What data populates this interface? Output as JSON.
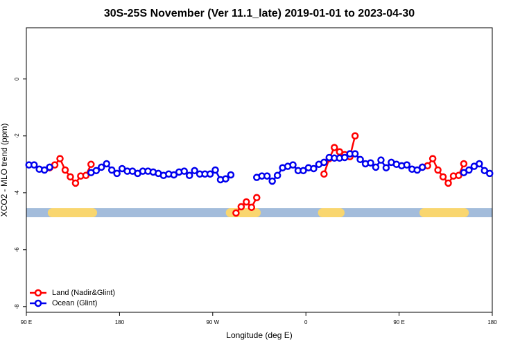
{
  "chart_data": {
    "type": "line",
    "title": "30S-25S November (Ver 11.1_late)   2019-01-01 to 2023-04-30",
    "x_label": "Longitude (deg E)",
    "y_label": "XCO2 - MLO trend (ppm)",
    "xlim": [
      90,
      540
    ],
    "ylim": [
      -8.2,
      1.8
    ],
    "xticks": [
      {
        "value": 90,
        "label": "90 E"
      },
      180,
      {
        "value": 270,
        "label": "90 W"
      },
      {
        "value": 360,
        "label": "0"
      },
      {
        "value": 450,
        "label": "90 E"
      },
      {
        "value": 540,
        "label": "180"
      }
    ],
    "yticks": [
      0,
      -2,
      -4,
      -6,
      -8
    ],
    "legend": "bottom-left",
    "surface_band": {
      "y": -4.7,
      "ocean_color": "#a3bcdb",
      "land_color": "#f9d66f",
      "land": [
        [
          115,
          154
        ],
        [
          287,
          312
        ],
        [
          376,
          393
        ],
        [
          474,
          513
        ]
      ]
    },
    "x": [
      92.5,
      97.5,
      102.5,
      107.5,
      112.5,
      117.5,
      122.5,
      127.5,
      132.5,
      137.5,
      142.5,
      147.5,
      152.5,
      157.5,
      162.5,
      167.5,
      172.5,
      177.5,
      182.5,
      187.5,
      192.5,
      197.5,
      202.5,
      207.5,
      212.5,
      217.5,
      222.5,
      227.5,
      232.5,
      237.5,
      242.5,
      247.5,
      252.5,
      257.5,
      262.5,
      267.5,
      272.5,
      277.5,
      282.5,
      287.5,
      292.5,
      297.5,
      302.5,
      307.5,
      312.5,
      317.5,
      322.5,
      327.5,
      332.5,
      337.5,
      342.5,
      347.5,
      352.5,
      357.5,
      362.5,
      367.5,
      372.5,
      377.5,
      382.5,
      387.5,
      392.5,
      397.5,
      402.5,
      407.5,
      412.5,
      417.5,
      422.5,
      427.5,
      432.5,
      437.5,
      442.5,
      447.5,
      452.5,
      457.5,
      462.5,
      467.5,
      472.5,
      477.5,
      482.5,
      487.5,
      492.5,
      497.5,
      502.5,
      507.5,
      512.5,
      517.5,
      522.5,
      527.5,
      532.5,
      537.5
    ],
    "series": [
      {
        "name": "Land (Nadir&Glint)",
        "color": "#ff0000",
        "values": [
          null,
          null,
          null,
          null,
          -3.12,
          -3.02,
          -2.8,
          -3.2,
          -3.44,
          -3.66,
          -3.41,
          -3.39,
          -3.0,
          null,
          null,
          null,
          null,
          null,
          null,
          null,
          null,
          null,
          null,
          null,
          null,
          null,
          null,
          null,
          null,
          null,
          null,
          null,
          null,
          null,
          null,
          null,
          null,
          null,
          null,
          null,
          -4.71,
          -4.49,
          -4.32,
          -4.51,
          -4.17,
          null,
          null,
          null,
          null,
          null,
          null,
          null,
          null,
          null,
          null,
          null,
          null,
          -3.34,
          -2.8,
          -2.41,
          -2.56,
          -2.66,
          -2.73,
          -2.0,
          null,
          null,
          null,
          null,
          null,
          null,
          null,
          null,
          null,
          null,
          null,
          null,
          -3.1,
          -3.05,
          -2.8,
          -3.2,
          -3.44,
          -3.66,
          -3.41,
          -3.39,
          -2.98,
          null,
          null,
          null,
          null,
          null
        ]
      },
      {
        "name": "Ocean (Glint)",
        "color": "#0000ee",
        "values": [
          -3.02,
          -3.02,
          -3.17,
          -3.2,
          -3.1,
          null,
          null,
          null,
          null,
          null,
          null,
          null,
          -3.29,
          -3.22,
          -3.1,
          -2.98,
          -3.2,
          -3.32,
          -3.15,
          -3.24,
          -3.24,
          -3.32,
          -3.24,
          -3.24,
          -3.27,
          -3.32,
          -3.39,
          -3.34,
          -3.37,
          -3.27,
          -3.24,
          -3.39,
          -3.22,
          -3.34,
          -3.34,
          -3.34,
          -3.2,
          -3.54,
          -3.51,
          -3.37,
          null,
          null,
          null,
          null,
          -3.46,
          -3.41,
          -3.41,
          -3.59,
          -3.39,
          -3.12,
          -3.07,
          -3.02,
          -3.22,
          -3.22,
          -3.12,
          -3.15,
          -3.0,
          -2.93,
          -2.76,
          -2.78,
          -2.78,
          -2.76,
          -2.63,
          -2.63,
          -2.83,
          -2.98,
          -2.95,
          -3.1,
          -2.85,
          -3.12,
          -2.93,
          -3.0,
          -3.05,
          -3.02,
          -3.17,
          -3.2,
          -3.1,
          null,
          null,
          null,
          null,
          null,
          null,
          null,
          -3.29,
          -3.2,
          -3.07,
          -2.98,
          -3.22,
          -3.32
        ]
      }
    ]
  }
}
